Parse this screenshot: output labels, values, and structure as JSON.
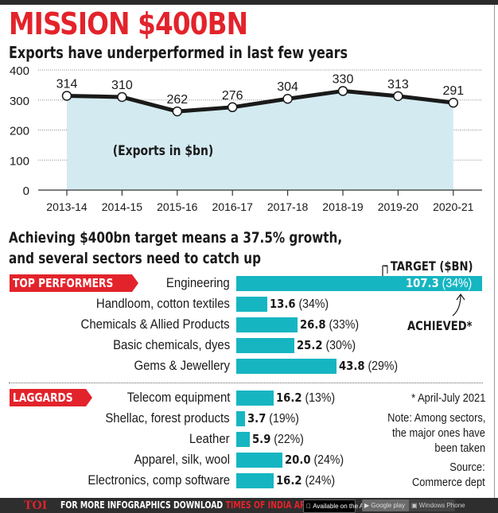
{
  "header": {
    "title": "MISSION $400BN",
    "subtitle": "Exports have underperformed in last few years"
  },
  "chart_data": [
    {
      "type": "area",
      "title": "Exports have underperformed in last few years",
      "annotation": "(Exports in $bn)",
      "xlabel": "",
      "ylabel": "",
      "x": [
        "2013-14",
        "2014-15",
        "2015-16",
        "2016-17",
        "2017-18",
        "2018-19",
        "2019-20",
        "2020-21"
      ],
      "values": [
        314,
        310,
        262,
        276,
        304,
        330,
        313,
        291
      ],
      "data_labels": [
        "314",
        "310",
        "262",
        "276",
        "304",
        "330",
        "313",
        "291"
      ],
      "yticks": [
        0,
        100,
        200,
        300,
        400
      ],
      "ylim": [
        0,
        400
      ],
      "grid": true,
      "colors": {
        "line": "#1a1a1a",
        "fill": "#d3eaf0",
        "marker": "#ffffff"
      }
    },
    {
      "type": "bar",
      "orientation": "horizontal",
      "title": "Achieving $400bn target means a 37.5% growth, and several sectors need to catch up",
      "value_label": "TARGET ($BN)",
      "share_label": "ACHIEVED*",
      "groups": [
        {
          "name": "TOP PERFORMERS",
          "categories": [
            "Engineering",
            "Handloom, cotton textiles",
            "Chemicals & Allied Products",
            "Basic chemicals, dyes",
            "Gems & Jewellery"
          ],
          "values": [
            107.3,
            13.6,
            26.8,
            25.2,
            43.8
          ],
          "value_labels": [
            "107.3",
            "13.6",
            "26.8",
            "25.2",
            "43.8"
          ],
          "achieved_pct": [
            "(34%)",
            "(34%)",
            "(33%)",
            "(30%)",
            "(29%)"
          ]
        },
        {
          "name": "LAGGARDS",
          "categories": [
            "Telecom equipment",
            "Shellac, forest products",
            "Leather",
            "Apparel, silk, wool",
            "Electronics, comp software"
          ],
          "values": [
            16.2,
            3.7,
            5.9,
            20.0,
            16.2
          ],
          "value_labels": [
            "16.2",
            "3.7",
            "5.9",
            "20.0",
            "16.2"
          ],
          "achieved_pct": [
            "(13%)",
            "(19%)",
            "(22%)",
            "(24%)",
            "(24%)"
          ]
        }
      ],
      "xlim": [
        0,
        107.3
      ],
      "colors": {
        "bar": "#16b5c2",
        "tag": "#e3232b"
      }
    }
  ],
  "section2": {
    "heading_line1": "Achieving $400bn target means a 37.5% growth,",
    "heading_line2": "and several sectors need to catch up"
  },
  "notes": {
    "period": "* April-July 2021",
    "note_l1": "Note: Among sectors,",
    "note_l2": "the major ones have",
    "note_l3": "been taken",
    "source_l1": "Source:",
    "source_l2": "Commerce dept"
  },
  "footer": {
    "logo": "TOI",
    "text_white": "FOR MORE  INFOGRAPHICS DOWNLOAD ",
    "text_red": "TIMES OF INDIA  APP",
    "app_store": "Available on the App Store",
    "google_play": "Google play",
    "windows_phone": "Windows Phone"
  }
}
